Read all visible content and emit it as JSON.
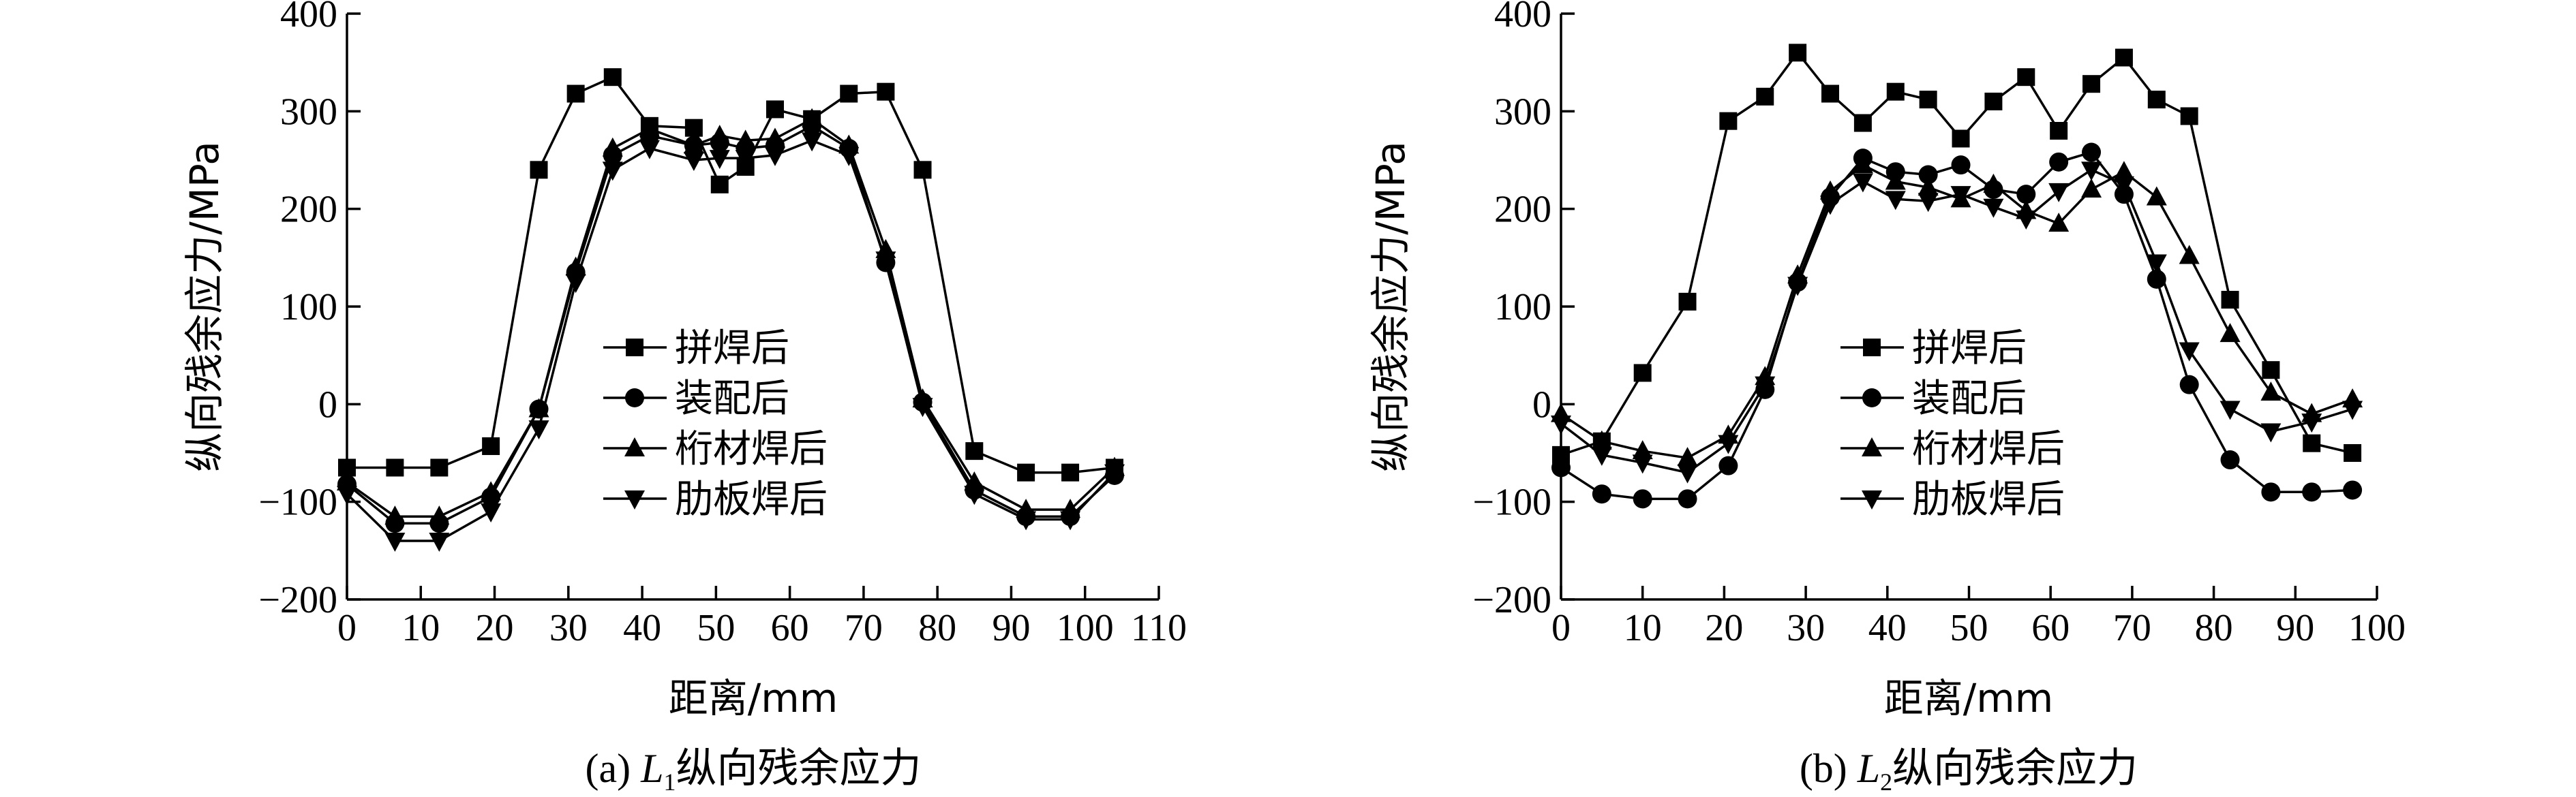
{
  "chart_data": [
    {
      "type": "line",
      "caption_prefix": "(a) ",
      "caption_var": "L",
      "caption_sub": "1",
      "caption_suffix": "纵向残余应力",
      "xlabel": "距离/mm",
      "ylabel": "纵向残余应力/MPa",
      "xlim": [
        0,
        110
      ],
      "ylim": [
        -200,
        400
      ],
      "xticks": [
        0,
        10,
        20,
        30,
        40,
        50,
        60,
        70,
        80,
        90,
        100,
        110
      ],
      "yticks": [
        -200,
        -100,
        0,
        100,
        200,
        300,
        400
      ],
      "legend_position": "center",
      "series": [
        {
          "name": "拼焊后",
          "marker": "square",
          "x": [
            0,
            6.5,
            12.5,
            19.5,
            26,
            31,
            36,
            41,
            47,
            50.5,
            54,
            58,
            63,
            68,
            73,
            78,
            85,
            92,
            98,
            104
          ],
          "y": [
            -65,
            -65,
            -65,
            -43,
            240,
            318,
            335,
            285,
            283,
            225,
            243,
            302,
            292,
            318,
            320,
            240,
            -48,
            -70,
            -70,
            -65
          ]
        },
        {
          "name": "装配后",
          "marker": "circle",
          "x": [
            0,
            6.5,
            12.5,
            19.5,
            26,
            31,
            36,
            41,
            47,
            50.5,
            54,
            58,
            63,
            68,
            73,
            78,
            85,
            92,
            98,
            104
          ],
          "y": [
            -82,
            -122,
            -122,
            -95,
            -5,
            135,
            255,
            275,
            265,
            268,
            262,
            265,
            285,
            262,
            145,
            2,
            -88,
            -115,
            -115,
            -73
          ]
        },
        {
          "name": "桁材焊后",
          "marker": "triangle-up",
          "x": [
            0,
            6.5,
            12.5,
            19.5,
            26,
            31,
            36,
            41,
            47,
            50.5,
            54,
            58,
            63,
            68,
            73,
            78,
            85,
            92,
            98,
            104
          ],
          "y": [
            -80,
            -115,
            -115,
            -90,
            -5,
            140,
            262,
            282,
            265,
            275,
            270,
            272,
            292,
            265,
            158,
            5,
            -80,
            -108,
            -108,
            -65
          ]
        },
        {
          "name": "肋板焊后",
          "marker": "triangle-down",
          "x": [
            0,
            6.5,
            12.5,
            19.5,
            26,
            31,
            36,
            41,
            47,
            50.5,
            54,
            58,
            63,
            68,
            73,
            78,
            85,
            92,
            98,
            104
          ],
          "y": [
            -92,
            -140,
            -140,
            -110,
            -25,
            125,
            240,
            262,
            250,
            252,
            252,
            255,
            270,
            255,
            148,
            -2,
            -92,
            -118,
            -118,
            -70
          ]
        }
      ]
    },
    {
      "type": "line",
      "caption_prefix": "(b) ",
      "caption_var": "L",
      "caption_sub": "2",
      "caption_suffix": "纵向残余应力",
      "xlabel": "距离/mm",
      "ylabel": "纵向残余应力/MPa",
      "xlim": [
        0,
        100
      ],
      "ylim": [
        -200,
        400
      ],
      "xticks": [
        0,
        10,
        20,
        30,
        40,
        50,
        60,
        70,
        80,
        90,
        100
      ],
      "yticks": [
        -200,
        -100,
        0,
        100,
        200,
        300,
        400
      ],
      "legend_position": "center",
      "series": [
        {
          "name": "拼焊后",
          "marker": "square",
          "x": [
            0,
            5,
            10,
            15.5,
            20.5,
            25,
            29,
            33,
            37,
            41,
            45,
            49,
            53,
            57,
            61,
            65,
            69,
            73,
            77,
            82,
            87,
            92,
            97
          ],
          "y": [
            -52,
            -38,
            32,
            105,
            290,
            315,
            360,
            318,
            288,
            320,
            312,
            272,
            310,
            335,
            280,
            328,
            355,
            312,
            295,
            107,
            35,
            -40,
            -50
          ]
        },
        {
          "name": "装配后",
          "marker": "circle",
          "x": [
            0,
            5,
            10,
            15.5,
            20.5,
            25,
            29,
            33,
            37,
            41,
            45,
            49,
            53,
            57,
            61,
            65,
            69,
            73,
            77,
            82,
            87,
            92,
            97
          ],
          "y": [
            -65,
            -92,
            -97,
            -97,
            -63,
            15,
            125,
            212,
            252,
            238,
            235,
            245,
            220,
            215,
            248,
            258,
            215,
            128,
            20,
            -57,
            -90,
            -90,
            -88
          ]
        },
        {
          "name": "桁材焊后",
          "marker": "triangle-up",
          "x": [
            0,
            5,
            10,
            15.5,
            20.5,
            25,
            29,
            33,
            37,
            41,
            45,
            49,
            53,
            57,
            61,
            65,
            69,
            73,
            77,
            82,
            87,
            92,
            97
          ],
          "y": [
            -10,
            -38,
            -48,
            -55,
            -32,
            28,
            132,
            218,
            245,
            228,
            222,
            210,
            225,
            198,
            185,
            220,
            238,
            212,
            152,
            72,
            12,
            -10,
            5
          ]
        },
        {
          "name": "肋板焊后",
          "marker": "triangle-down",
          "x": [
            0,
            5,
            10,
            15.5,
            20.5,
            25,
            29,
            33,
            37,
            41,
            45,
            49,
            53,
            57,
            61,
            65,
            69,
            73,
            77,
            82,
            87,
            92,
            97
          ],
          "y": [
            -20,
            -52,
            -60,
            -70,
            -40,
            20,
            122,
            205,
            228,
            210,
            208,
            215,
            202,
            190,
            218,
            240,
            225,
            145,
            55,
            -5,
            -28,
            -18,
            -5
          ]
        }
      ]
    }
  ]
}
